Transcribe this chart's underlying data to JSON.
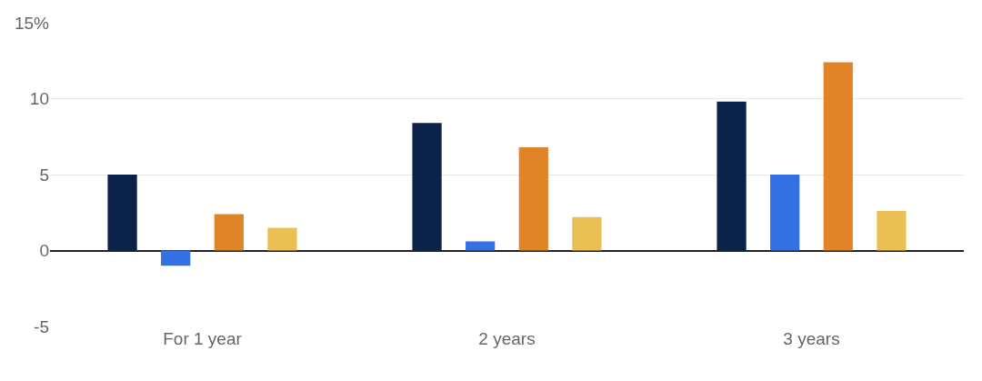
{
  "chart_data": {
    "type": "bar",
    "categories": [
      "For 1 year",
      "2 years",
      "3 years"
    ],
    "series": [
      {
        "color": "#0b2348",
        "values": [
          5.0,
          8.4,
          9.8
        ]
      },
      {
        "color": "#3270e3",
        "values": [
          -1.0,
          0.6,
          5.0
        ]
      },
      {
        "color": "#e08427",
        "values": [
          2.4,
          6.8,
          12.4
        ]
      },
      {
        "color": "#eac055",
        "values": [
          1.5,
          2.2,
          2.6
        ]
      }
    ],
    "ylim": [
      -5,
      15
    ],
    "yticks": [
      -5,
      0,
      5,
      10,
      {
        "value": 15,
        "label": "15%"
      }
    ],
    "grid": "y"
  }
}
